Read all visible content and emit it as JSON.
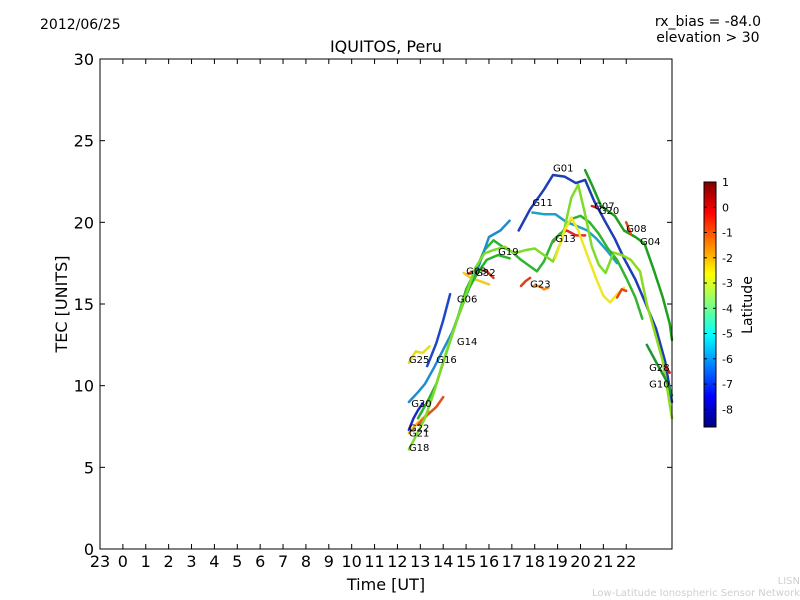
{
  "header": {
    "date": "2012/06/25",
    "rx_bias": "rx_bias = -84.0",
    "elevation": "elevation > 30",
    "title": "IQUITOS, Peru"
  },
  "credit": {
    "line1": "LISN",
    "line2": "Low-Latitude Ionospheric Sensor Network"
  },
  "chart_data": {
    "type": "line",
    "title": "IQUITOS, Peru",
    "xlabel": "Time [UT]",
    "ylabel": "TEC [UNITS]",
    "xlim": [
      -1,
      24
    ],
    "ylim": [
      0,
      30
    ],
    "xticks": [
      -1,
      0,
      1,
      2,
      3,
      4,
      5,
      6,
      7,
      8,
      9,
      10,
      11,
      12,
      13,
      14,
      15,
      16,
      17,
      18,
      19,
      20,
      21,
      22
    ],
    "xtick_labels": [
      "23",
      "0",
      "1",
      "2",
      "3",
      "4",
      "5",
      "6",
      "7",
      "8",
      "9",
      "10",
      "11",
      "12",
      "13",
      "14",
      "15",
      "16",
      "17",
      "18",
      "19",
      "20",
      "21",
      "22"
    ],
    "yticks": [
      0,
      5,
      10,
      15,
      20,
      25,
      30
    ],
    "colorbar": {
      "label": "Latitude",
      "range": [
        -8.7,
        1
      ],
      "ticks": [
        1,
        0,
        -1,
        -2,
        -3,
        -4,
        -5,
        -6,
        -7,
        -8
      ],
      "colors": [
        "#00007f",
        "#0000ff",
        "#007fff",
        "#00ffff",
        "#7fff7f",
        "#ffff00",
        "#ff7f00",
        "#ff0000",
        "#7f0000"
      ]
    },
    "series": [
      {
        "name": "G01",
        "label_at": [
          18.8,
          23.1
        ],
        "color": "#1e3cb4",
        "points": [
          [
            17.3,
            19.5
          ],
          [
            17.8,
            20.8
          ],
          [
            18.4,
            22.0
          ],
          [
            18.8,
            22.9
          ],
          [
            19.3,
            22.8
          ],
          [
            19.8,
            22.4
          ],
          [
            20.2,
            22.6
          ],
          [
            20.6,
            21.3
          ],
          [
            21.1,
            20.0
          ],
          [
            21.5,
            19.0
          ],
          [
            21.9,
            17.8
          ],
          [
            22.4,
            16.5
          ],
          [
            22.8,
            15.2
          ],
          [
            23.3,
            13.5
          ],
          [
            23.7,
            11.5
          ],
          [
            24.0,
            9.0
          ]
        ]
      },
      {
        "name": "G11",
        "label_at": [
          17.9,
          21.0
        ],
        "color": "#1ea0c8",
        "points": [
          [
            17.9,
            20.6
          ],
          [
            18.4,
            20.5
          ],
          [
            18.9,
            20.5
          ],
          [
            19.4,
            20.0
          ],
          [
            19.8,
            19.8
          ],
          [
            20.3,
            19.5
          ],
          [
            20.7,
            19.0
          ],
          [
            21.2,
            18.2
          ],
          [
            21.6,
            17.5
          ]
        ]
      },
      {
        "name": "G13",
        "label_at": [
          18.9,
          18.8
        ],
        "color": "#e62828",
        "points": [
          [
            18.8,
            18.8
          ],
          [
            19.1,
            19.3
          ],
          [
            19.4,
            19.5
          ],
          [
            19.8,
            19.2
          ],
          [
            20.2,
            19.2
          ]
        ]
      },
      {
        "name": "G07",
        "label_at": [
          20.6,
          20.8
        ],
        "color": "#d21e1e",
        "points": [
          [
            20.5,
            21.0
          ],
          [
            20.7,
            20.9
          ]
        ]
      },
      {
        "name": "G20",
        "label_at": [
          20.8,
          20.5
        ],
        "color": "#1ea01e",
        "points": [
          [
            20.2,
            23.2
          ],
          [
            20.5,
            22.3
          ],
          [
            20.9,
            21.0
          ],
          [
            21.2,
            20.7
          ],
          [
            21.5,
            20.4
          ],
          [
            21.9,
            19.5
          ],
          [
            22.4,
            19.1
          ],
          [
            22.8,
            18.7
          ],
          [
            23.2,
            17.1
          ],
          [
            23.6,
            15.4
          ],
          [
            23.9,
            13.8
          ],
          [
            24.0,
            12.8
          ]
        ]
      },
      {
        "name": "G08",
        "label_at": [
          22.0,
          19.4
        ],
        "color": "#e64614",
        "points": [
          [
            22.0,
            20.0
          ],
          [
            22.2,
            19.3
          ]
        ]
      },
      {
        "name": "G04",
        "label_at": [
          22.6,
          18.6
        ],
        "color": "#8cdc1e",
        "points": [
          [
            21.3,
            18.2
          ],
          [
            21.8,
            18.0
          ],
          [
            22.2,
            17.7
          ],
          [
            22.6,
            17.0
          ],
          [
            22.9,
            15.0
          ],
          [
            23.2,
            13.5
          ],
          [
            23.6,
            11.5
          ],
          [
            24.0,
            8.0
          ]
        ]
      },
      {
        "name": "G19",
        "label_at": [
          16.4,
          18.0
        ],
        "color": "#32b432",
        "points": [
          [
            14.6,
            14.0
          ],
          [
            15.0,
            15.9
          ],
          [
            15.4,
            17.0
          ],
          [
            15.8,
            18.3
          ],
          [
            16.2,
            18.9
          ],
          [
            16.6,
            18.5
          ],
          [
            17.0,
            18.2
          ],
          [
            17.4,
            17.7
          ],
          [
            17.8,
            17.3
          ],
          [
            18.1,
            17.0
          ],
          [
            18.4,
            17.6
          ],
          [
            18.8,
            18.9
          ],
          [
            19.2,
            19.4
          ],
          [
            19.6,
            20.2
          ],
          [
            20.0,
            20.4
          ],
          [
            20.4,
            20.0
          ],
          [
            20.8,
            19.3
          ],
          [
            21.2,
            18.4
          ],
          [
            21.6,
            17.7
          ],
          [
            22.0,
            16.6
          ],
          [
            22.4,
            15.4
          ],
          [
            22.7,
            14.1
          ]
        ]
      },
      {
        "name": "G23",
        "label_at": [
          17.8,
          16.0
        ],
        "color": "#ff8c1e",
        "points": [
          [
            17.9,
            16.1
          ],
          [
            18.2,
            16.1
          ],
          [
            18.4,
            15.9
          ],
          [
            18.6,
            16.0
          ]
        ]
      },
      {
        "name": "G32",
        "label_at": [
          15.4,
          16.7
        ],
        "color": "#d23c1e",
        "points": [
          [
            15.0,
            16.8
          ],
          [
            15.5,
            17.1
          ],
          [
            15.9,
            17.0
          ],
          [
            16.2,
            16.6
          ]
        ]
      },
      {
        "name": "G03",
        "label_at": [
          15.0,
          16.8
        ],
        "color": "#f0c828",
        "points": [
          [
            14.9,
            16.9
          ],
          [
            15.2,
            16.6
          ],
          [
            15.6,
            16.4
          ],
          [
            16.0,
            16.2
          ]
        ]
      },
      {
        "name": "G06",
        "label_at": [
          14.6,
          15.1
        ],
        "color": "#1e46c8",
        "points": [
          [
            13.3,
            11.2
          ],
          [
            13.7,
            12.6
          ],
          [
            14.0,
            14.0
          ],
          [
            14.3,
            15.6
          ]
        ]
      },
      {
        "name": "G14",
        "label_at": [
          14.6,
          12.5
        ],
        "color": "#1e8cd2",
        "points": [
          [
            12.5,
            9.0
          ],
          [
            12.9,
            9.6
          ],
          [
            13.2,
            10.1
          ],
          [
            13.6,
            11.1
          ],
          [
            14.0,
            12.2
          ],
          [
            14.4,
            13.3
          ],
          [
            14.8,
            14.8
          ],
          [
            15.2,
            16.2
          ],
          [
            15.6,
            17.5
          ],
          [
            16.0,
            19.1
          ],
          [
            16.5,
            19.5
          ],
          [
            16.9,
            20.1
          ]
        ]
      },
      {
        "name": "G16",
        "label_at": [
          13.7,
          11.4
        ],
        "color": "#28b428",
        "points": [
          [
            12.9,
            8.0
          ],
          [
            13.3,
            9.0
          ],
          [
            13.7,
            10.1
          ],
          [
            14.2,
            12.3
          ],
          [
            14.6,
            14.0
          ],
          [
            15.1,
            15.9
          ],
          [
            15.5,
            16.9
          ],
          [
            15.9,
            17.7
          ],
          [
            16.4,
            18.0
          ],
          [
            16.9,
            17.8
          ]
        ]
      },
      {
        "name": "G25",
        "label_at": [
          12.5,
          11.4
        ],
        "color": "#e6dc1e",
        "points": [
          [
            12.5,
            11.4
          ],
          [
            12.8,
            12.1
          ],
          [
            13.1,
            12.0
          ],
          [
            13.4,
            12.4
          ]
        ]
      },
      {
        "name": "G30",
        "label_at": [
          12.6,
          8.7
        ],
        "color": "#1e28c8",
        "points": [
          [
            12.5,
            7.3
          ],
          [
            12.7,
            8.0
          ],
          [
            12.9,
            8.5
          ],
          [
            13.1,
            8.9
          ]
        ]
      },
      {
        "name": "G22",
        "label_at": [
          12.5,
          7.2
        ],
        "color": "#ffb41e",
        "points": [
          [
            12.5,
            7.1
          ],
          [
            12.8,
            7.6
          ],
          [
            13.1,
            8.0
          ],
          [
            13.4,
            8.4
          ]
        ]
      },
      {
        "name": "G21",
        "label_at": [
          12.5,
          6.9
        ],
        "color": "#e6501e",
        "points": [
          [
            12.9,
            7.6
          ],
          [
            13.3,
            8.2
          ],
          [
            13.7,
            8.7
          ],
          [
            14.0,
            9.3
          ]
        ]
      },
      {
        "name": "G18",
        "label_at": [
          12.5,
          6.0
        ],
        "color": "#7ddc28",
        "points": [
          [
            12.5,
            6.1
          ],
          [
            12.8,
            6.9
          ],
          [
            13.2,
            8.0
          ],
          [
            13.6,
            9.6
          ],
          [
            14.0,
            11.5
          ],
          [
            14.5,
            13.6
          ],
          [
            15.0,
            15.6
          ],
          [
            15.4,
            17.2
          ],
          [
            15.8,
            18.1
          ],
          [
            16.2,
            18.3
          ],
          [
            16.7,
            18.5
          ],
          [
            17.1,
            18.1
          ],
          [
            17.6,
            18.3
          ],
          [
            18.0,
            18.4
          ],
          [
            18.4,
            18.0
          ],
          [
            18.8,
            17.6
          ],
          [
            19.2,
            19.0
          ],
          [
            19.6,
            21.5
          ],
          [
            19.9,
            22.3
          ],
          [
            20.2,
            20.5
          ],
          [
            20.5,
            18.5
          ],
          [
            20.8,
            17.4
          ],
          [
            21.1,
            16.9
          ],
          [
            21.4,
            18.0
          ]
        ]
      },
      {
        "name": "G28",
        "label_at": [
          23.0,
          10.9
        ],
        "color": "#d21e1e",
        "points": [
          [
            23.7,
            11.2
          ],
          [
            23.9,
            10.8
          ]
        ]
      },
      {
        "name": "G10",
        "label_at": [
          23.0,
          9.9
        ],
        "color": "#1e9632",
        "points": [
          [
            22.9,
            12.5
          ],
          [
            23.4,
            11.2
          ],
          [
            23.8,
            10.2
          ],
          [
            24.0,
            9.4
          ]
        ]
      },
      {
        "name": "",
        "label_at": null,
        "color": "#f0e628",
        "points": [
          [
            18.9,
            17.8
          ],
          [
            19.3,
            19.5
          ],
          [
            19.6,
            20.3
          ],
          [
            19.9,
            19.5
          ],
          [
            20.3,
            18.0
          ],
          [
            20.7,
            16.5
          ],
          [
            21.0,
            15.5
          ],
          [
            21.3,
            15.1
          ],
          [
            21.6,
            15.6
          ],
          [
            21.9,
            16.0
          ]
        ]
      },
      {
        "name": "",
        "label_at": null,
        "color": "#e64614",
        "points": [
          [
            21.6,
            15.4
          ],
          [
            21.8,
            15.9
          ],
          [
            22.0,
            15.8
          ]
        ]
      },
      {
        "name": "",
        "label_at": null,
        "color": "#e63c14",
        "points": [
          [
            17.4,
            16.1
          ],
          [
            17.6,
            16.4
          ],
          [
            17.8,
            16.6
          ]
        ]
      }
    ]
  }
}
